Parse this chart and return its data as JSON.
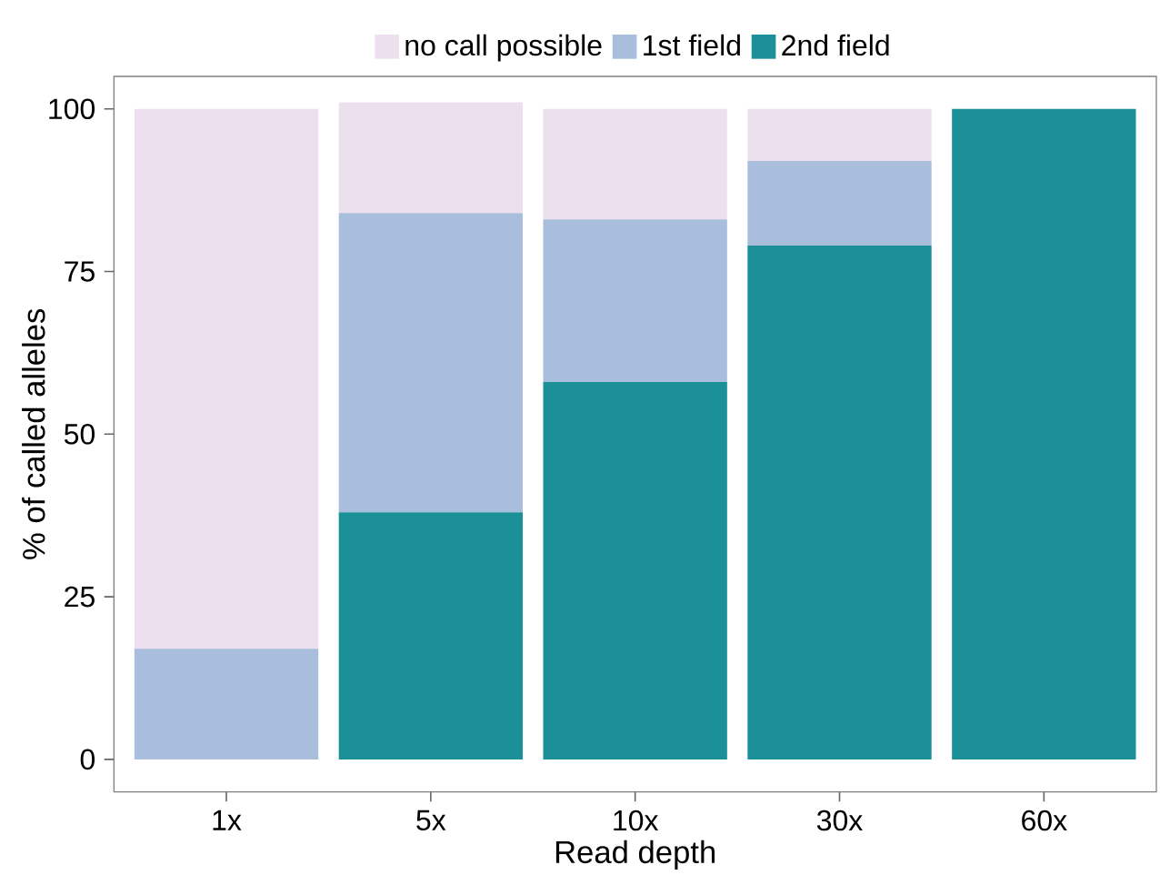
{
  "chart_data": {
    "type": "bar",
    "stacked": true,
    "xlabel": "Read depth",
    "ylabel": "% of called alleles",
    "categories": [
      "1x",
      "5x",
      "10x",
      "30x",
      "60x"
    ],
    "series": [
      {
        "name": "2nd field",
        "color": "#1c9099",
        "values": [
          0,
          38,
          58,
          79,
          100
        ]
      },
      {
        "name": "1st field",
        "color": "#a9bedd",
        "values": [
          17,
          46,
          25,
          13,
          0
        ]
      },
      {
        "name": "no call possible",
        "color": "#ede0ee",
        "values": [
          83,
          17,
          17,
          8,
          0
        ]
      }
    ],
    "ylim": [
      -5,
      105
    ],
    "yticks": [
      0,
      25,
      50,
      75,
      100
    ],
    "grid": false,
    "legend": "top"
  }
}
